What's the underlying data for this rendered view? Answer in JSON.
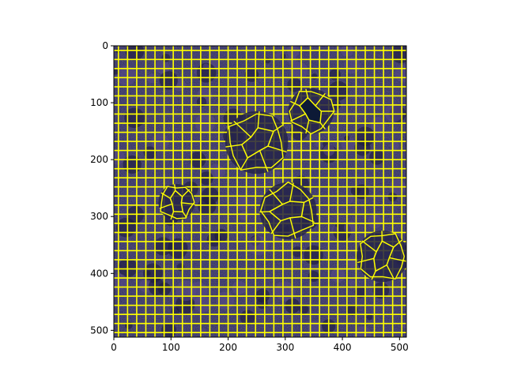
{
  "chart_data": {
    "type": "heatmap",
    "description_free": true,
    "x_ticks": [
      0,
      100,
      200,
      300,
      400,
      500
    ],
    "y_ticks": [
      0,
      100,
      200,
      300,
      400,
      500
    ],
    "x_tick_labels": [
      "0",
      "100",
      "200",
      "300",
      "400",
      "500"
    ],
    "y_tick_labels": [
      "0",
      "100",
      "200",
      "300",
      "400",
      "500"
    ],
    "xlim": [
      0,
      512
    ],
    "ylim": [
      512,
      0
    ],
    "grid_step": 16,
    "boundary_color": "#ffff00",
    "image_base_color": "#2b2a57",
    "image_highlight_color": "#5a4a8a",
    "irregular_regions": [
      {
        "center": [
          345,
          115
        ],
        "radius": 40
      },
      {
        "center": [
          110,
          275
        ],
        "radius": 32
      },
      {
        "center": [
          470,
          370
        ],
        "radius": 45
      },
      {
        "center": [
          250,
          170
        ],
        "radius": 55
      },
      {
        "center": [
          305,
          290
        ],
        "radius": 50
      }
    ]
  }
}
